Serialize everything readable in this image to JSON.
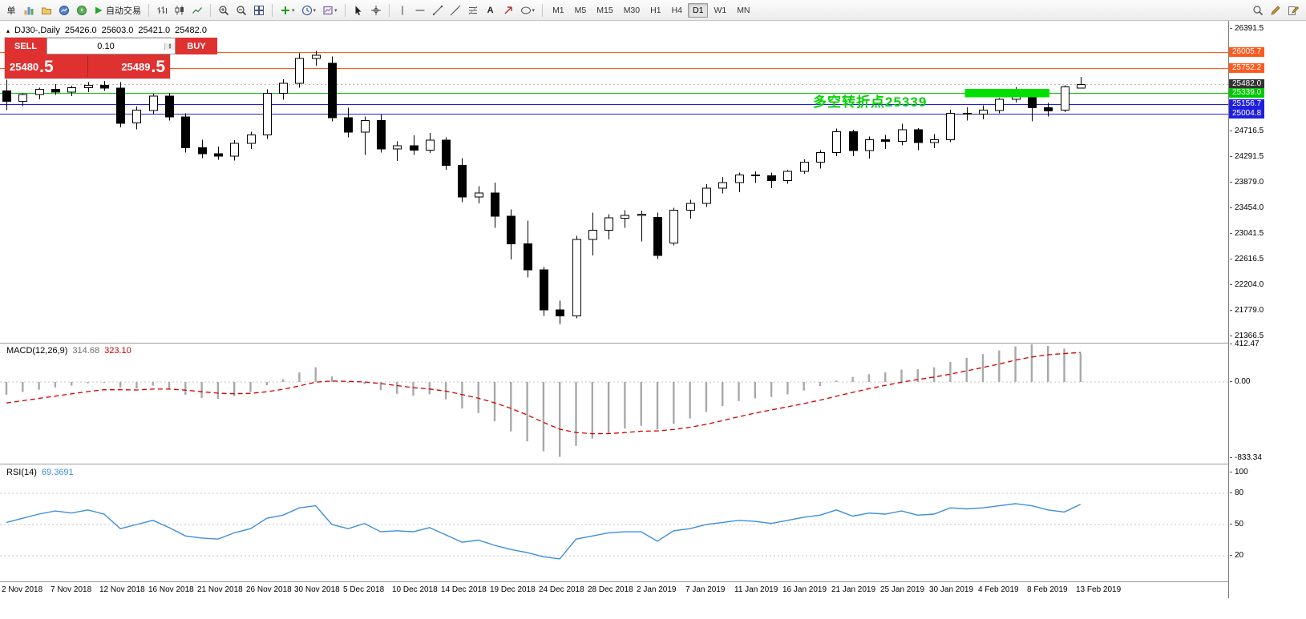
{
  "toolbar": {
    "new_order_label": "单",
    "autotrading_label": "自动交易",
    "timeframes": [
      "M1",
      "M5",
      "M15",
      "M30",
      "H1",
      "H4",
      "D1",
      "W1",
      "MN"
    ],
    "active_timeframe": "D1"
  },
  "symbol_header": {
    "symbol": "DJ30-,Daily",
    "open": "25426.0",
    "high": "25603.0",
    "low": "25421.0",
    "close": "25482.0"
  },
  "trade_panel": {
    "sell_label": "SELL",
    "buy_label": "BUY",
    "volume": "0.10",
    "sell_price_main": "25480",
    "sell_price_frac": ".5",
    "buy_price_main": "25489",
    "buy_price_frac": ".5",
    "color": "#e03131"
  },
  "annotation": {
    "text": "多空转折点25339",
    "color": "#00d300"
  },
  "highlight_box": {
    "from_bar": 59,
    "to_bar": 64,
    "price_top": 25410,
    "price_bottom": 25270,
    "color": "#00e000"
  },
  "levels": [
    {
      "price": 26005.7,
      "color": "#ff5a1e",
      "style": "solid"
    },
    {
      "price": 25752.2,
      "color": "#ff5a1e",
      "style": "solid"
    },
    {
      "price": 25482.0,
      "color": "#b8b8b8",
      "style": "dotted"
    },
    {
      "price": 25339.0,
      "color": "#00c800",
      "style": "solid"
    },
    {
      "price": 25156.7,
      "color": "#1f1fe0",
      "style": "solid"
    },
    {
      "price": 25004.8,
      "color": "#1f1fe0",
      "style": "solid"
    }
  ],
  "price_axis": {
    "ticks": [
      {
        "label": "26391.5",
        "price": 26391.5
      },
      {
        "label": "24716.5",
        "price": 24716.5
      },
      {
        "label": "24291.5",
        "price": 24291.5
      },
      {
        "label": "23879.0",
        "price": 23879.0
      },
      {
        "label": "23454.0",
        "price": 23454.0
      },
      {
        "label": "23041.5",
        "price": 23041.5
      },
      {
        "label": "22616.5",
        "price": 22616.5
      },
      {
        "label": "22204.0",
        "price": 22204.0
      },
      {
        "label": "21779.0",
        "price": 21779.0
      },
      {
        "label": "21366.5",
        "price": 21366.5
      }
    ],
    "level_labels": [
      {
        "label": "26005.7",
        "price": 26005.7,
        "bg": "#ff5a1e"
      },
      {
        "label": "25752.2",
        "price": 25752.2,
        "bg": "#ff5a1e"
      },
      {
        "label": "25482.0",
        "price": 25482.0,
        "bg": "#333333"
      },
      {
        "label": "25339.0",
        "price": 25339.0,
        "bg": "#00c800"
      },
      {
        "label": "25156.7",
        "price": 25156.7,
        "bg": "#1f1fe0"
      },
      {
        "label": "25004.8",
        "price": 25004.8,
        "bg": "#1f1fe0"
      }
    ]
  },
  "macd": {
    "name": "MACD(12,26,9)",
    "value_main": "314.68",
    "value_signal": "323.10",
    "ticks": [
      {
        "label": "412.47",
        "value": 412.47
      },
      {
        "label": "0.00",
        "value": 0
      },
      {
        "label": "-833.34",
        "value": -833.34
      }
    ]
  },
  "rsi": {
    "name": "RSI(14)",
    "value": "69.3691",
    "levels": [
      80,
      50,
      20
    ],
    "ticks": [
      {
        "label": "100",
        "value": 100
      },
      {
        "label": "80",
        "value": 80
      },
      {
        "label": "50",
        "value": 50
      },
      {
        "label": "20",
        "value": 20
      }
    ]
  },
  "chart_data": [
    {
      "type": "candlestick",
      "title": "DJ30-,Daily",
      "ylim": [
        21262,
        26522
      ],
      "x_label_every": 3,
      "x_labels": [
        "2 Nov 2018",
        "7 Nov 2018",
        "12 Nov 2018",
        "16 Nov 2018",
        "21 Nov 2018",
        "26 Nov 2018",
        "30 Nov 2018",
        "5 Dec 2018",
        "10 Dec 2018",
        "14 Dec 2018",
        "19 Dec 2018",
        "24 Dec 2018",
        "28 Dec 2018",
        "2 Jan 2019",
        "7 Jan 2019",
        "11 Jan 2019",
        "16 Jan 2019",
        "21 Jan 2019",
        "25 Jan 2019",
        "30 Jan 2019",
        "4 Feb 2019",
        "8 Feb 2019",
        "13 Feb 2019"
      ],
      "bars": [
        [
          25380,
          25560,
          25060,
          25210
        ],
        [
          25210,
          25340,
          25130,
          25320
        ],
        [
          25320,
          25430,
          25240,
          25400
        ],
        [
          25400,
          25490,
          25310,
          25360
        ],
        [
          25360,
          25460,
          25290,
          25430
        ],
        [
          25430,
          25520,
          25360,
          25470
        ],
        [
          25470,
          25540,
          25380,
          25420
        ],
        [
          25420,
          25520,
          24780,
          24850
        ],
        [
          24850,
          25120,
          24750,
          25060
        ],
        [
          25060,
          25330,
          25000,
          25290
        ],
        [
          25290,
          25340,
          24890,
          24950
        ],
        [
          24950,
          25010,
          24370,
          24450
        ],
        [
          24450,
          24580,
          24280,
          24350
        ],
        [
          24350,
          24470,
          24250,
          24310
        ],
        [
          24310,
          24570,
          24240,
          24520
        ],
        [
          24520,
          24710,
          24430,
          24660
        ],
        [
          24660,
          25400,
          24590,
          25340
        ],
        [
          25340,
          25570,
          25230,
          25500
        ],
        [
          25500,
          25990,
          25430,
          25910
        ],
        [
          25910,
          26030,
          25790,
          25960
        ],
        [
          25830,
          25940,
          24880,
          24940
        ],
        [
          24940,
          25100,
          24620,
          24700
        ],
        [
          24700,
          24960,
          24330,
          24890
        ],
        [
          24890,
          24990,
          24370,
          24430
        ],
        [
          24430,
          24550,
          24230,
          24480
        ],
        [
          24480,
          24650,
          24330,
          24410
        ],
        [
          24410,
          24690,
          24360,
          24570
        ],
        [
          24570,
          24620,
          24090,
          24160
        ],
        [
          24160,
          24280,
          23560,
          23640
        ],
        [
          23640,
          23820,
          23540,
          23710
        ],
        [
          23710,
          23880,
          23140,
          23330
        ],
        [
          23330,
          23440,
          22620,
          22880
        ],
        [
          22880,
          23260,
          22330,
          22450
        ],
        [
          22450,
          22500,
          21700,
          21800
        ],
        [
          21800,
          21950,
          21560,
          21700
        ],
        [
          21700,
          23010,
          21660,
          22950
        ],
        [
          22950,
          23390,
          22690,
          23100
        ],
        [
          23100,
          23360,
          22950,
          23300
        ],
        [
          23300,
          23430,
          23140,
          23340
        ],
        [
          23340,
          23420,
          22920,
          23360
        ],
        [
          23310,
          23390,
          22630,
          22690
        ],
        [
          22890,
          23470,
          22850,
          23430
        ],
        [
          23430,
          23600,
          23290,
          23540
        ],
        [
          23540,
          23850,
          23480,
          23790
        ],
        [
          23790,
          23970,
          23700,
          23880
        ],
        [
          23880,
          24040,
          23720,
          24000
        ],
        [
          24000,
          24060,
          23870,
          23990
        ],
        [
          23990,
          24040,
          23790,
          23910
        ],
        [
          23910,
          24090,
          23860,
          24060
        ],
        [
          24060,
          24260,
          24020,
          24210
        ],
        [
          24210,
          24410,
          24110,
          24370
        ],
        [
          24370,
          24760,
          24310,
          24710
        ],
        [
          24710,
          24740,
          24310,
          24400
        ],
        [
          24400,
          24630,
          24270,
          24580
        ],
        [
          24580,
          24660,
          24430,
          24550
        ],
        [
          24550,
          24840,
          24490,
          24740
        ],
        [
          24740,
          24770,
          24410,
          24530
        ],
        [
          24530,
          24670,
          24440,
          24580
        ],
        [
          24580,
          25070,
          24540,
          25010
        ],
        [
          25010,
          25110,
          24890,
          25000
        ],
        [
          25000,
          25140,
          24910,
          25060
        ],
        [
          25060,
          25260,
          25010,
          25240
        ],
        [
          25240,
          25440,
          25190,
          25390
        ],
        [
          25390,
          25410,
          24880,
          25100
        ],
        [
          25100,
          25180,
          24960,
          25050
        ],
        [
          25060,
          25470,
          25030,
          25440
        ],
        [
          25426,
          25603,
          25421,
          25482
        ]
      ]
    },
    {
      "type": "bar",
      "title": "MACD(12,26,9)",
      "ylim": [
        -895,
        421
      ],
      "values": [
        -140,
        -110,
        -85,
        -60,
        -40,
        -15,
        -5,
        -60,
        -70,
        -40,
        -75,
        -140,
        -175,
        -185,
        -155,
        -110,
        -35,
        30,
        105,
        160,
        60,
        -10,
        -25,
        -90,
        -130,
        -150,
        -135,
        -190,
        -290,
        -340,
        -430,
        -540,
        -650,
        -760,
        -820,
        -700,
        -620,
        -560,
        -510,
        -480,
        -520,
        -460,
        -400,
        -330,
        -265,
        -210,
        -180,
        -165,
        -135,
        -95,
        -45,
        15,
        55,
        85,
        105,
        135,
        140,
        160,
        220,
        265,
        305,
        345,
        390,
        412,
        395,
        365,
        314.68
      ],
      "series": [
        {
          "name": "signal",
          "color": "#d40000",
          "values": [
            -230,
            -205,
            -180,
            -155,
            -130,
            -105,
            -85,
            -85,
            -88,
            -78,
            -78,
            -90,
            -107,
            -123,
            -129,
            -125,
            -107,
            -80,
            -43,
            -2,
            10,
            6,
            0,
            -18,
            -40,
            -62,
            -77,
            -100,
            -138,
            -178,
            -228,
            -290,
            -362,
            -442,
            -518,
            -554,
            -567,
            -566,
            -555,
            -540,
            -536,
            -521,
            -497,
            -464,
            -424,
            -381,
            -341,
            -306,
            -272,
            -237,
            -199,
            -156,
            -114,
            -74,
            -38,
            -3,
            26,
            53,
            86,
            122,
            159,
            196,
            239,
            274,
            298,
            311,
            323.1
          ]
        }
      ]
    },
    {
      "type": "line",
      "title": "RSI(14)",
      "ylim": [
        0,
        100
      ],
      "color": "#3e8ede",
      "values": [
        52,
        56,
        60,
        63,
        61,
        64,
        60,
        46,
        50,
        54,
        47,
        39,
        37,
        36,
        42,
        46,
        56,
        59,
        66,
        68,
        50,
        46,
        51,
        43,
        44,
        43,
        47,
        40,
        33,
        35,
        30,
        26,
        23,
        19,
        17,
        36,
        39,
        42,
        43,
        43,
        34,
        44,
        46,
        50,
        52,
        54,
        53,
        51,
        54,
        57,
        59,
        64,
        58,
        61,
        60,
        63,
        59,
        60,
        66,
        65,
        66,
        68,
        70,
        68,
        64,
        62,
        69.37
      ]
    }
  ]
}
